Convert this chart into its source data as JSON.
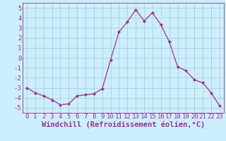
{
  "x": [
    0,
    1,
    2,
    3,
    4,
    5,
    6,
    7,
    8,
    9,
    10,
    11,
    12,
    13,
    14,
    15,
    16,
    17,
    18,
    19,
    20,
    21,
    22,
    23
  ],
  "y": [
    -3.0,
    -3.5,
    -3.8,
    -4.2,
    -4.7,
    -4.6,
    -3.8,
    -3.7,
    -3.6,
    -3.1,
    -0.2,
    2.6,
    3.6,
    4.8,
    3.7,
    4.5,
    3.3,
    1.6,
    -0.9,
    -1.3,
    -2.2,
    -2.5,
    -3.5,
    -4.8
  ],
  "line_color": "#993399",
  "marker": "D",
  "marker_size": 2.0,
  "bg_color": "#cceeff",
  "grid_color": "#aacccc",
  "xlabel": "Windchill (Refroidissement éolien,°C)",
  "xlim": [
    -0.5,
    23.5
  ],
  "ylim": [
    -5.5,
    5.5
  ],
  "yticks": [
    -5,
    -4,
    -3,
    -2,
    -1,
    0,
    1,
    2,
    3,
    4,
    5
  ],
  "xticks": [
    0,
    1,
    2,
    3,
    4,
    5,
    6,
    7,
    8,
    9,
    10,
    11,
    12,
    13,
    14,
    15,
    16,
    17,
    18,
    19,
    20,
    21,
    22,
    23
  ],
  "tick_fontsize": 6.5,
  "xlabel_fontsize": 7.5,
  "label_color": "#993399",
  "spine_color": "#993399"
}
